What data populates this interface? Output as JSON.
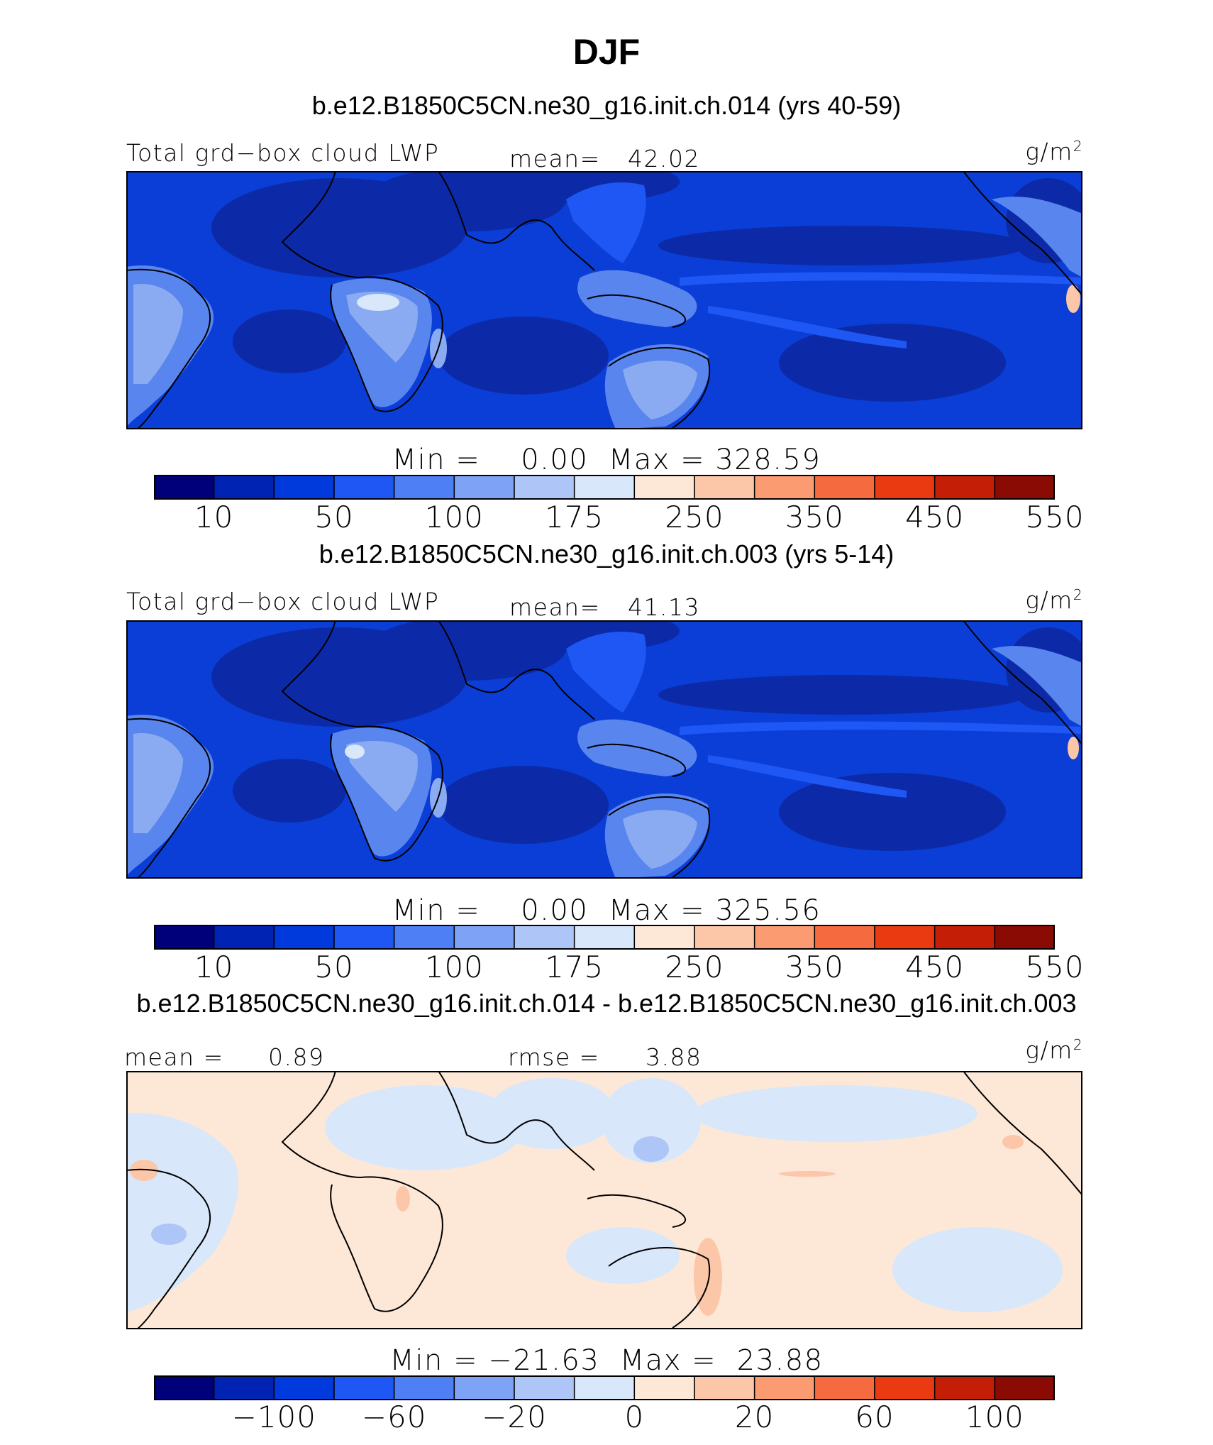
{
  "title": "DJF",
  "panels": [
    {
      "case": "b.e12.B1850C5CN.ne30_g16.init.ch.014 (yrs 40-59)",
      "var_label": "Total grd−box cloud LWP",
      "stat_label": "mean=",
      "stat_value": "42.02",
      "units": "g/m",
      "units_sup": "2",
      "minmax": "Min =    0.00  Max = 328.59",
      "kind": "field"
    },
    {
      "case": "b.e12.B1850C5CN.ne30_g16.init.ch.003 (yrs 5-14)",
      "var_label": "Total grd−box cloud LWP",
      "stat_label": "mean=",
      "stat_value": "41.13",
      "units": "g/m",
      "units_sup": "2",
      "minmax": "Min =    0.00  Max = 325.56",
      "kind": "field"
    },
    {
      "case": "b.e12.B1850C5CN.ne30_g16.init.ch.014 - b.e12.B1850C5CN.ne30_g16.init.ch.003",
      "mean_label": "mean =",
      "mean_value": "0.89",
      "rmse_label": "rmse =",
      "rmse_value": "3.88",
      "units": "g/m",
      "units_sup": "2",
      "minmax": "Min = −21.63  Max =  23.88",
      "kind": "diff"
    }
  ],
  "colorbars": {
    "colors": [
      "#00007a",
      "#0023b3",
      "#0039dc",
      "#1f57f5",
      "#4f7ff5",
      "#7ea2f5",
      "#aec5f7",
      "#d8e7fa",
      "#fde8d8",
      "#fcc6a8",
      "#fb9b72",
      "#f66a3f",
      "#e93a12",
      "#c41e06",
      "#8a0b03"
    ],
    "field_ticks": [
      "10",
      "50",
      "100",
      "175",
      "250",
      "350",
      "450",
      "550"
    ],
    "diff_ticks": [
      "−100",
      "−60",
      "−20",
      "0",
      "20",
      "60",
      "100"
    ]
  }
}
